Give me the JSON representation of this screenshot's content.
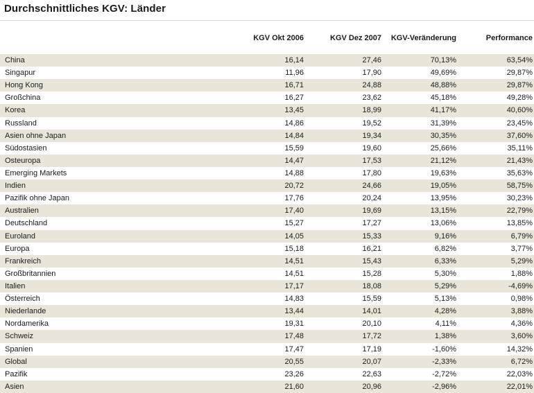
{
  "title": "Durchschnittliches KGV: Länder",
  "colors": {
    "row_stripe": "#e9e6d9",
    "row_alt": "#ffffff",
    "text": "#1a1a1a",
    "rule": "#d9d8d2"
  },
  "table": {
    "columns": [
      "KGV Okt 2006",
      "KGV Dez 2007",
      "KGV-Veränderung",
      "Performance"
    ],
    "rows": [
      {
        "name": "China",
        "values": [
          "16,14",
          "27,46",
          "70,13%",
          "63,54%"
        ]
      },
      {
        "name": "Singapur",
        "values": [
          "11,96",
          "17,90",
          "49,69%",
          "29,87%"
        ]
      },
      {
        "name": "Hong Kong",
        "values": [
          "16,71",
          "24,88",
          "48,88%",
          "29,87%"
        ]
      },
      {
        "name": "Großchina",
        "values": [
          "16,27",
          "23,62",
          "45,18%",
          "49,28%"
        ]
      },
      {
        "name": "Korea",
        "values": [
          "13,45",
          "18,99",
          "41,17%",
          "40,60%"
        ]
      },
      {
        "name": "Russland",
        "values": [
          "14,86",
          "19,52",
          "31,39%",
          "23,45%"
        ]
      },
      {
        "name": "Asien ohne Japan",
        "values": [
          "14,84",
          "19,34",
          "30,35%",
          "37,60%"
        ]
      },
      {
        "name": "Südostasien",
        "values": [
          "15,59",
          "19,60",
          "25,66%",
          "35,11%"
        ]
      },
      {
        "name": "Osteuropa",
        "values": [
          "14,47",
          "17,53",
          "21,12%",
          "21,43%"
        ]
      },
      {
        "name": "Emerging Markets",
        "values": [
          "14,88",
          "17,80",
          "19,63%",
          "35,63%"
        ]
      },
      {
        "name": "Indien",
        "values": [
          "20,72",
          "24,66",
          "19,05%",
          "58,75%"
        ]
      },
      {
        "name": "Pazifik ohne Japan",
        "values": [
          "17,76",
          "20,24",
          "13,95%",
          "30,23%"
        ]
      },
      {
        "name": "Australien",
        "values": [
          "17,40",
          "19,69",
          "13,15%",
          "22,79%"
        ]
      },
      {
        "name": "Deutschland",
        "values": [
          "15,27",
          "17,27",
          "13,06%",
          "13,85%"
        ]
      },
      {
        "name": "Euroland",
        "values": [
          "14,05",
          "15,33",
          "9,16%",
          "6,79%"
        ]
      },
      {
        "name": "Europa",
        "values": [
          "15,18",
          "16,21",
          "6,82%",
          "3,77%"
        ]
      },
      {
        "name": "Frankreich",
        "values": [
          "14,51",
          "15,43",
          "6,33%",
          "5,29%"
        ]
      },
      {
        "name": "Großbritannien",
        "values": [
          "14,51",
          "15,28",
          "5,30%",
          "1,88%"
        ]
      },
      {
        "name": "Italien",
        "values": [
          "17,17",
          "18,08",
          "5,29%",
          "-4,69%"
        ]
      },
      {
        "name": "Österreich",
        "values": [
          "14,83",
          "15,59",
          "5,13%",
          "0,98%"
        ]
      },
      {
        "name": "Niederlande",
        "values": [
          "13,44",
          "14,01",
          "4,28%",
          "3,88%"
        ]
      },
      {
        "name": "Nordamerika",
        "values": [
          "19,31",
          "20,10",
          "4,11%",
          "4,36%"
        ]
      },
      {
        "name": "Schweiz",
        "values": [
          "17,48",
          "17,72",
          "1,38%",
          "3,60%"
        ]
      },
      {
        "name": "Spanien",
        "values": [
          "17,47",
          "17,19",
          "-1,60%",
          "14,32%"
        ]
      },
      {
        "name": "Global",
        "values": [
          "20,55",
          "20,07",
          "-2,33%",
          "6,72%"
        ]
      },
      {
        "name": "Pazifik",
        "values": [
          "23,26",
          "22,63",
          "-2,72%",
          "22,03%"
        ]
      },
      {
        "name": "Asien",
        "values": [
          "21,60",
          "20,96",
          "-2,96%",
          "22,01%"
        ]
      }
    ]
  }
}
